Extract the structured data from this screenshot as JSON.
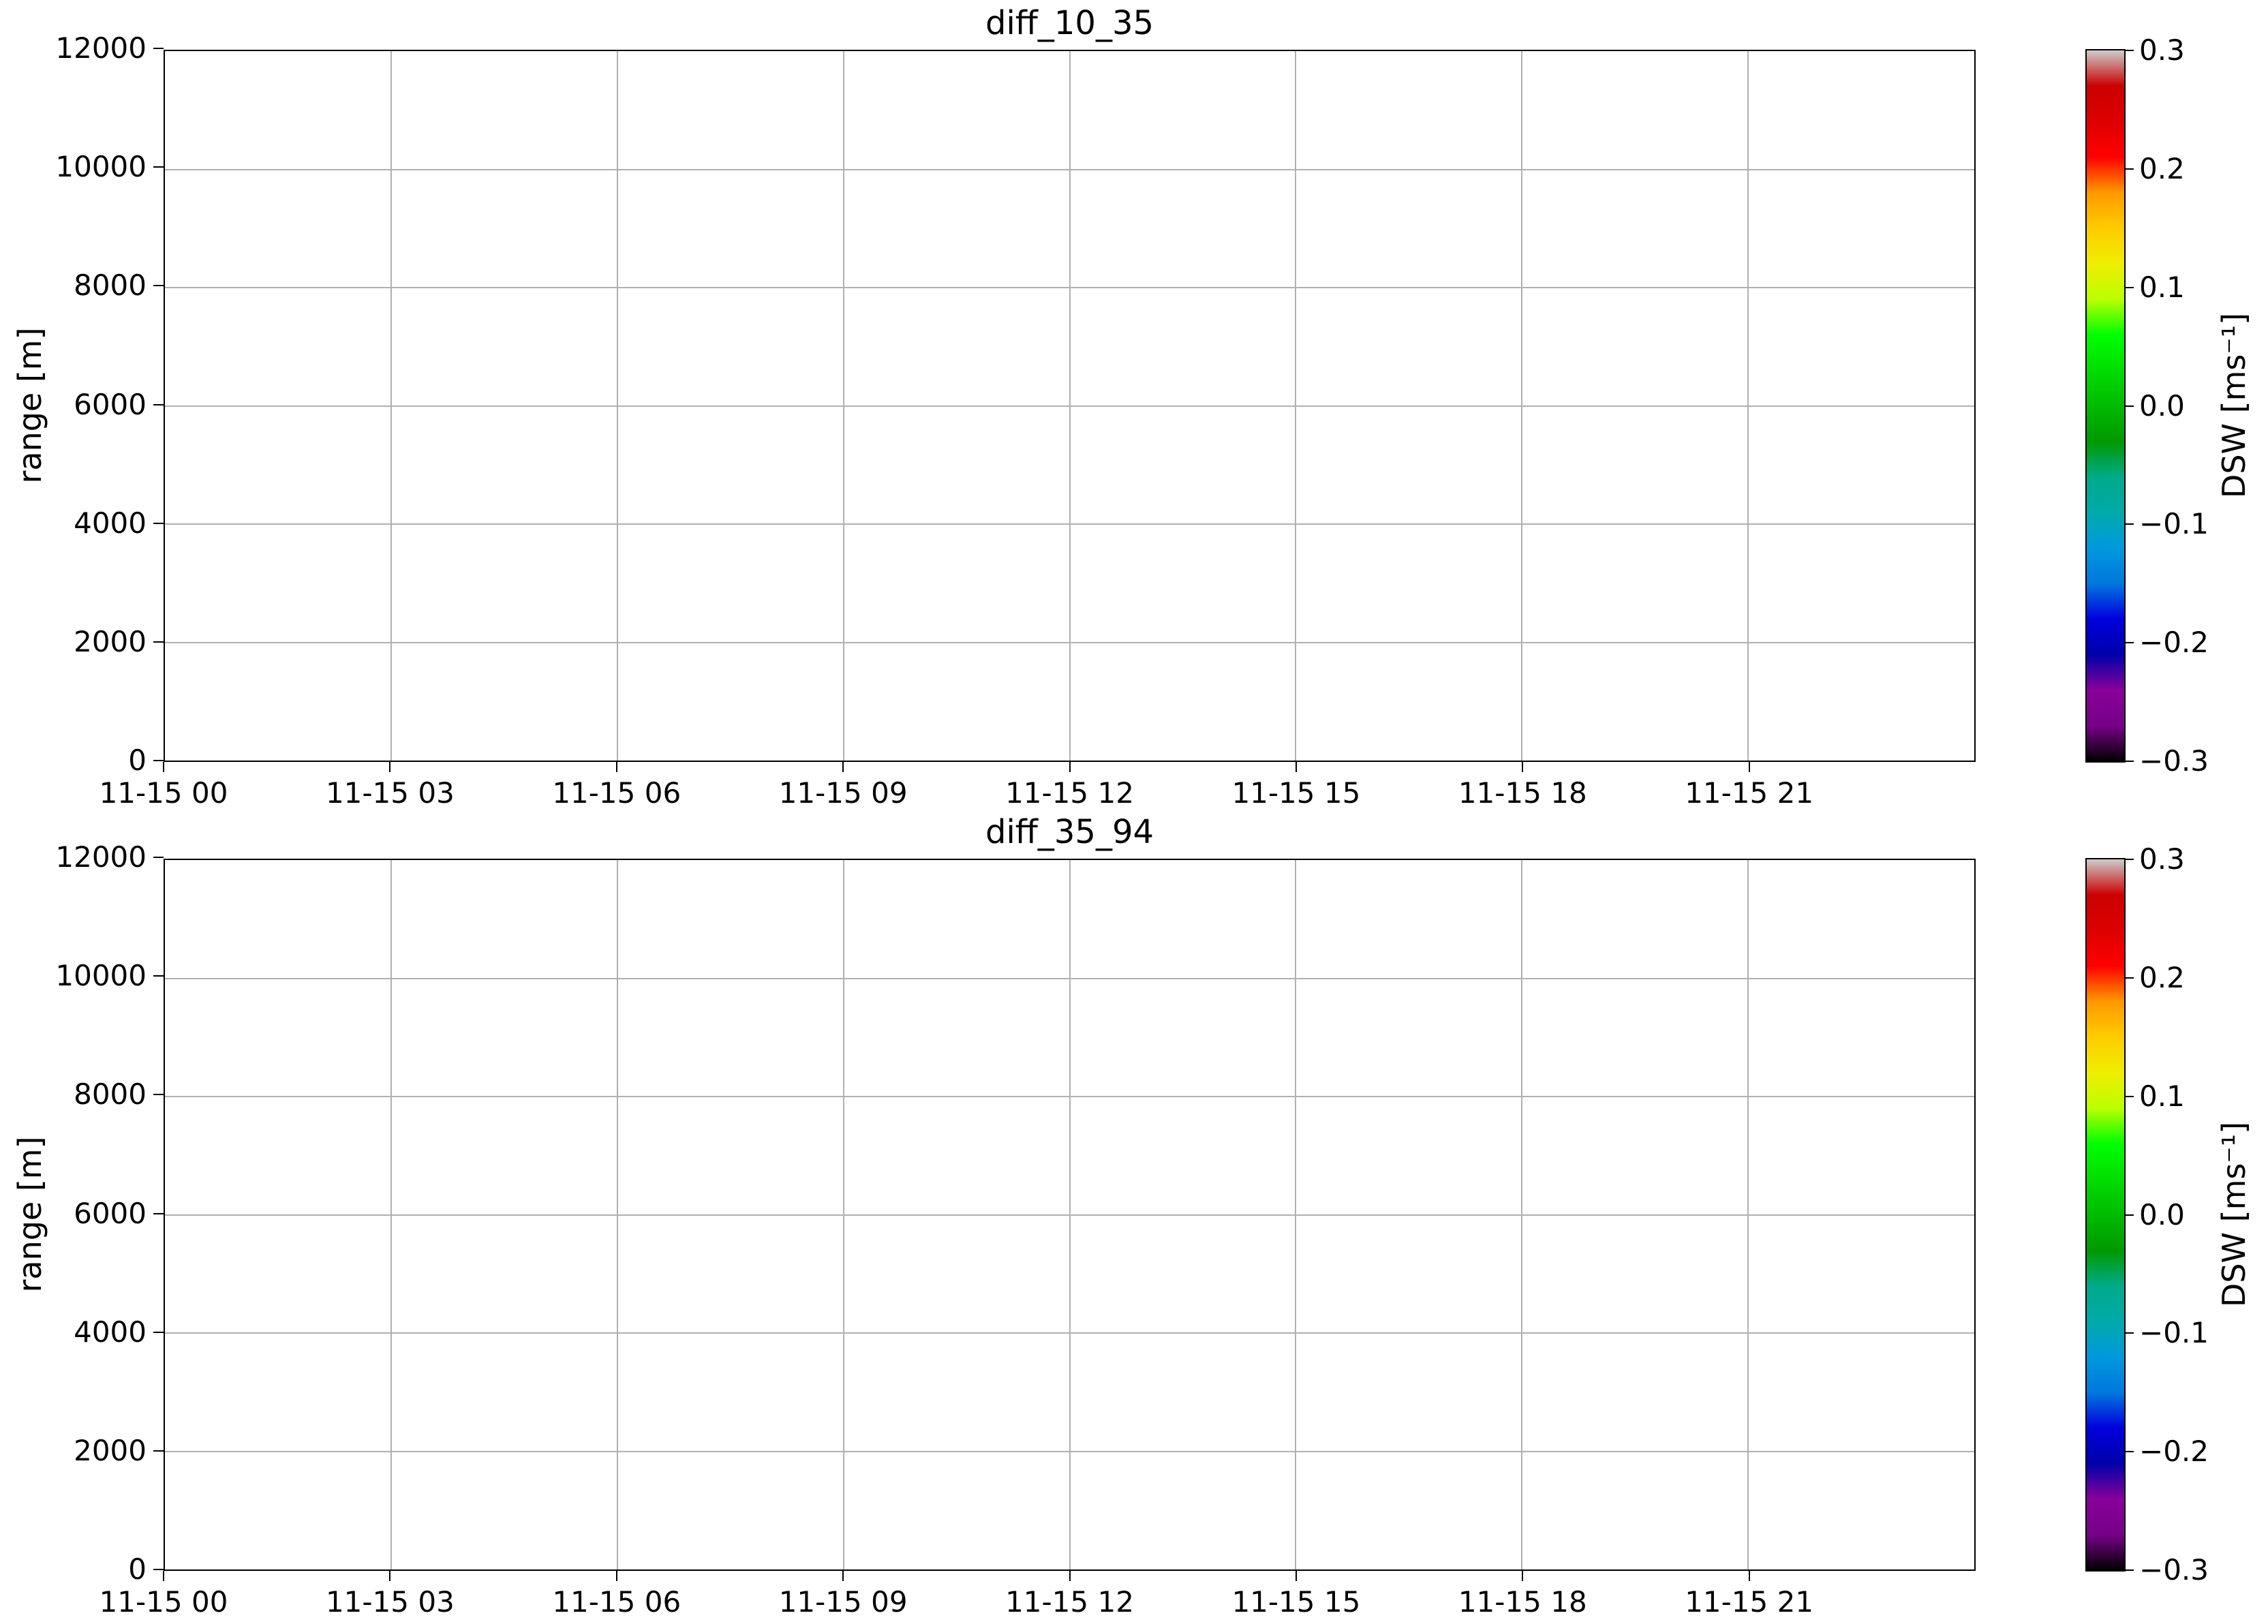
{
  "figure": {
    "background": "#ffffff",
    "grid_color": "#b0b0b0",
    "spine_color": "#000000",
    "text_color": "#000000"
  },
  "chart_data": [
    {
      "type": "heatmap",
      "title": "diff_10_35",
      "xlabel": "",
      "ylabel": "range [m]",
      "x_tick_labels": [
        "11-15 00",
        "11-15 03",
        "11-15 06",
        "11-15 09",
        "11-15 12",
        "11-15 15",
        "11-15 18",
        "11-15 21"
      ],
      "y_tick_labels": [
        "0",
        "2000",
        "4000",
        "6000",
        "8000",
        "10000",
        "12000"
      ],
      "ylim": [
        0,
        12000
      ],
      "x_range": [
        "11-15 00",
        "11-16 00"
      ],
      "grid": true,
      "values": [],
      "colorbar": {
        "label": "DSW [ms⁻¹]",
        "tick_labels": [
          "0.3",
          "0.2",
          "0.1",
          "0.0",
          "−0.1",
          "−0.2",
          "−0.3"
        ],
        "vmin": -0.3,
        "vmax": 0.3,
        "colormap": "nipy_spectral",
        "gradient_stops": [
          [
            "0%",
            "#000000"
          ],
          [
            "5%",
            "#770088"
          ],
          [
            "10%",
            "#880099"
          ],
          [
            "15%",
            "#0000aa"
          ],
          [
            "20%",
            "#0000dd"
          ],
          [
            "25%",
            "#0077dd"
          ],
          [
            "30%",
            "#0099dd"
          ],
          [
            "35%",
            "#00aaaa"
          ],
          [
            "40%",
            "#00aa88"
          ],
          [
            "45%",
            "#009900"
          ],
          [
            "50%",
            "#00bb00"
          ],
          [
            "55%",
            "#00dd00"
          ],
          [
            "60%",
            "#00ff00"
          ],
          [
            "65%",
            "#bbff00"
          ],
          [
            "70%",
            "#eeee00"
          ],
          [
            "75%",
            "#ffcc00"
          ],
          [
            "80%",
            "#ff9900"
          ],
          [
            "85%",
            "#ff0000"
          ],
          [
            "90%",
            "#dd0000"
          ],
          [
            "95%",
            "#cc0000"
          ],
          [
            "100%",
            "#cccccc"
          ]
        ]
      }
    },
    {
      "type": "heatmap",
      "title": "diff_35_94",
      "xlabel": "",
      "ylabel": "range [m]",
      "x_tick_labels": [
        "11-15 00",
        "11-15 03",
        "11-15 06",
        "11-15 09",
        "11-15 12",
        "11-15 15",
        "11-15 18",
        "11-15 21"
      ],
      "y_tick_labels": [
        "0",
        "2000",
        "4000",
        "6000",
        "8000",
        "10000",
        "12000"
      ],
      "ylim": [
        0,
        12000
      ],
      "x_range": [
        "11-15 00",
        "11-16 00"
      ],
      "grid": true,
      "values": [],
      "colorbar": {
        "label": "DSW [ms⁻¹]",
        "tick_labels": [
          "0.3",
          "0.2",
          "0.1",
          "0.0",
          "−0.1",
          "−0.2",
          "−0.3"
        ],
        "vmin": -0.3,
        "vmax": 0.3,
        "colormap": "nipy_spectral",
        "gradient_stops": [
          [
            "0%",
            "#000000"
          ],
          [
            "5%",
            "#770088"
          ],
          [
            "10%",
            "#880099"
          ],
          [
            "15%",
            "#0000aa"
          ],
          [
            "20%",
            "#0000dd"
          ],
          [
            "25%",
            "#0077dd"
          ],
          [
            "30%",
            "#0099dd"
          ],
          [
            "35%",
            "#00aaaa"
          ],
          [
            "40%",
            "#00aa88"
          ],
          [
            "45%",
            "#009900"
          ],
          [
            "50%",
            "#00bb00"
          ],
          [
            "55%",
            "#00dd00"
          ],
          [
            "60%",
            "#00ff00"
          ],
          [
            "65%",
            "#bbff00"
          ],
          [
            "70%",
            "#eeee00"
          ],
          [
            "75%",
            "#ffcc00"
          ],
          [
            "80%",
            "#ff9900"
          ],
          [
            "85%",
            "#ff0000"
          ],
          [
            "90%",
            "#dd0000"
          ],
          [
            "95%",
            "#cc0000"
          ],
          [
            "100%",
            "#cccccc"
          ]
        ]
      }
    }
  ]
}
